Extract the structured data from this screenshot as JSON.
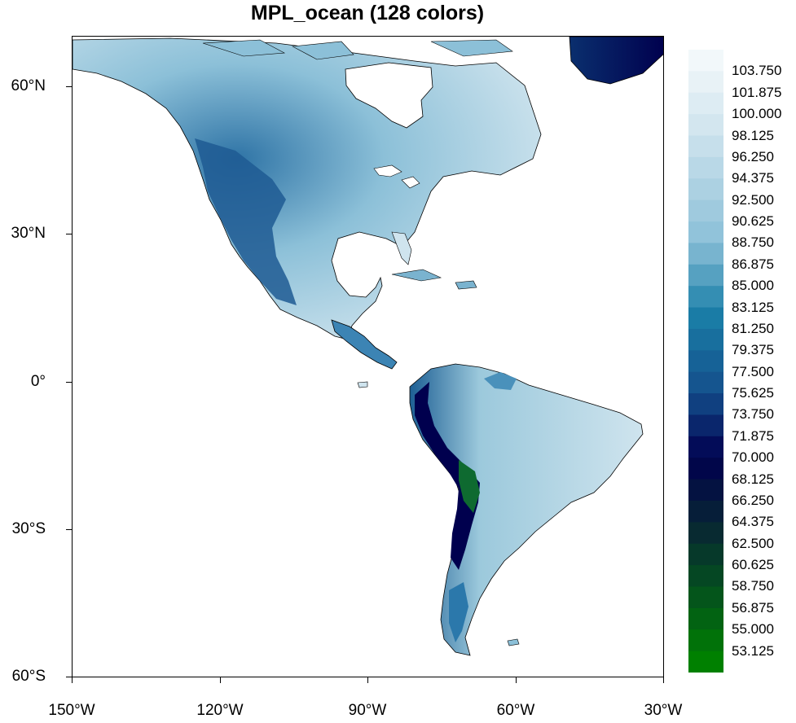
{
  "title": "MPL_ocean (128 colors)",
  "map": {
    "projection": "cylindrical-equidistant",
    "lon_range": [
      -150,
      -30
    ],
    "lat_range": [
      -60,
      70
    ],
    "x_ticks": [
      "150°W",
      "120°W",
      "90°W",
      "60°W",
      "30°W"
    ],
    "y_ticks": [
      "60°N",
      "30°N",
      "0°",
      "30°S",
      "60°S"
    ],
    "land_colormap": "MPL_ocean",
    "ocean_color": "#ffffff",
    "coastline_color": "#000000"
  },
  "colorbar": {
    "labels": [
      "103.750",
      "101.875",
      "100.000",
      "98.125",
      "96.250",
      "94.375",
      "92.500",
      "90.625",
      "88.750",
      "86.875",
      "85.000",
      "83.125",
      "81.250",
      "79.375",
      "77.500",
      "75.625",
      "73.750",
      "71.875",
      "70.000",
      "68.125",
      "66.250",
      "64.375",
      "62.500",
      "60.625",
      "58.750",
      "56.875",
      "55.000",
      "53.125"
    ],
    "min_color": "#008000",
    "max_color": "#f2f8fa"
  },
  "colors": {
    "deep_green": "#008000",
    "navy": "#00004e",
    "ocean_blue": "#1a7fa8",
    "light_blue": "#cfe4ee",
    "near_white": "#f2f8fa"
  }
}
